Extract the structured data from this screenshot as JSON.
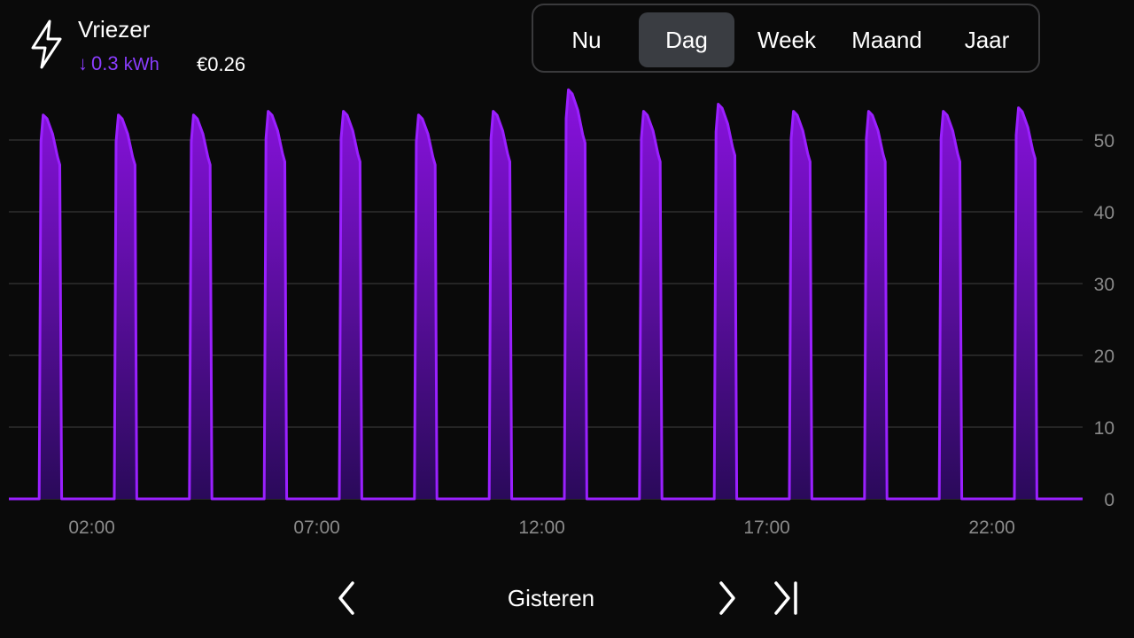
{
  "header": {
    "title": "Vriezer",
    "usage_arrow": "↓",
    "usage_value": "0.3",
    "usage_unit": "kWh",
    "cost": "€0.26",
    "icon": "lightning-bolt-icon"
  },
  "periods": [
    {
      "label": "Nu",
      "active": false
    },
    {
      "label": "Dag",
      "active": true
    },
    {
      "label": "Week",
      "active": false
    },
    {
      "label": "Maand",
      "active": false
    },
    {
      "label": "Jaar",
      "active": false
    }
  ],
  "nav": {
    "label": "Gisteren",
    "prev_icon": "chevron-left-icon",
    "next_icon": "chevron-right-icon",
    "last_icon": "skip-to-end-icon"
  },
  "colors": {
    "background": "#0a0a0a",
    "accent": "#8b3dff",
    "active_segment": "#3a3d42",
    "grid": "#2e2e2e",
    "axis_text": "#8a8a8a"
  },
  "chart_data": {
    "type": "area",
    "title": "",
    "xlabel": "",
    "ylabel": "",
    "x_range": [
      0,
      24
    ],
    "ylim": [
      0,
      55
    ],
    "y_ticks": [
      0,
      10,
      20,
      30,
      40,
      50
    ],
    "x_ticks": [
      {
        "value": 2,
        "label": "02:00"
      },
      {
        "value": 7,
        "label": "07:00"
      },
      {
        "value": 12,
        "label": "12:00"
      },
      {
        "value": 17,
        "label": "17:00"
      },
      {
        "value": 22,
        "label": "22:00"
      }
    ],
    "grid": true,
    "baseline": 0,
    "cycles": [
      {
        "start": 0.83,
        "end": 1.33,
        "peak": 53.5
      },
      {
        "start": 2.5,
        "end": 3.0,
        "peak": 53.5
      },
      {
        "start": 4.17,
        "end": 4.67,
        "peak": 53.5
      },
      {
        "start": 5.83,
        "end": 6.33,
        "peak": 54
      },
      {
        "start": 7.5,
        "end": 8.0,
        "peak": 54
      },
      {
        "start": 9.17,
        "end": 9.67,
        "peak": 53.5
      },
      {
        "start": 10.83,
        "end": 11.33,
        "peak": 54
      },
      {
        "start": 12.5,
        "end": 13.0,
        "peak": 57
      },
      {
        "start": 14.17,
        "end": 14.67,
        "peak": 54
      },
      {
        "start": 15.83,
        "end": 16.33,
        "peak": 55
      },
      {
        "start": 17.5,
        "end": 18.0,
        "peak": 54
      },
      {
        "start": 19.17,
        "end": 19.67,
        "peak": 54
      },
      {
        "start": 20.83,
        "end": 21.33,
        "peak": 54
      },
      {
        "start": 22.5,
        "end": 23.0,
        "peak": 54.5
      }
    ],
    "series": [
      {
        "values_note_ignored": null
      }
    ]
  }
}
